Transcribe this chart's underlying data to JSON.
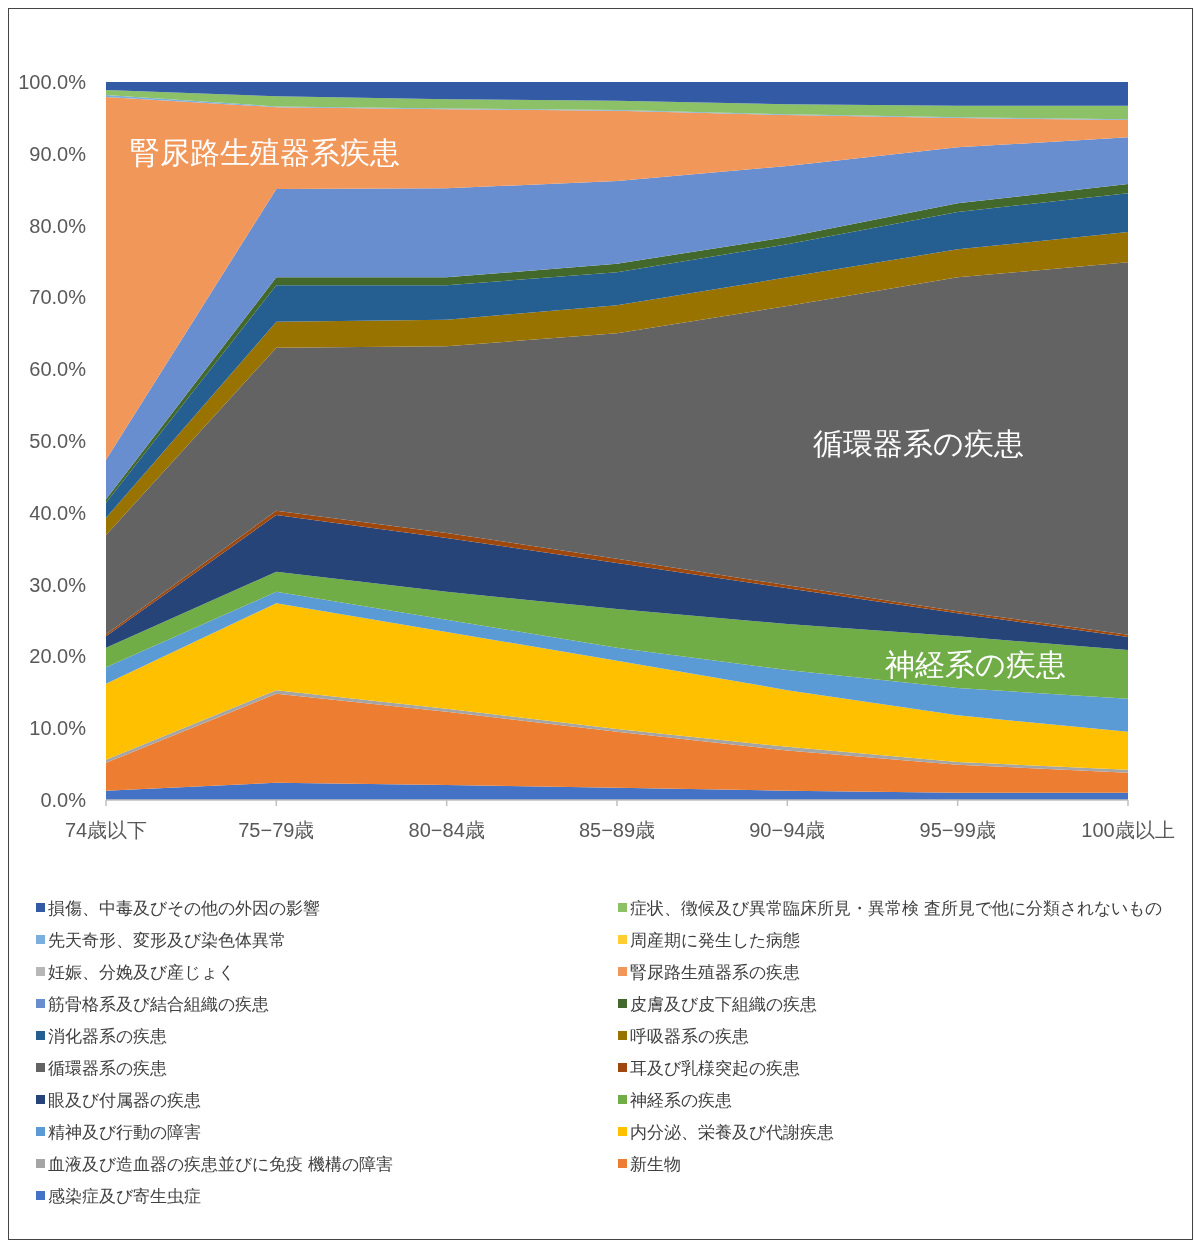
{
  "chart_data": {
    "type": "area",
    "stacked": true,
    "legend": "bottom",
    "grid": false,
    "categories": [
      "74歳以下",
      "75−79歳",
      "80−84歳",
      "85−89歳",
      "90−94歳",
      "95−99歳",
      "100歳以上"
    ],
    "ylim": [
      0,
      100
    ],
    "yticks": [
      {
        "value": 0,
        "label": "0.0%"
      },
      {
        "value": 10,
        "label": "10.0%"
      },
      {
        "value": 20,
        "label": "20.0%"
      },
      {
        "value": 30,
        "label": "30.0%"
      },
      {
        "value": 40,
        "label": "40.0%"
      },
      {
        "value": 50,
        "label": "50.0%"
      },
      {
        "value": 60,
        "label": "60.0%"
      },
      {
        "value": 70,
        "label": "70.0%"
      },
      {
        "value": 80,
        "label": "80.0%"
      },
      {
        "value": 90,
        "label": "90.0%"
      },
      {
        "value": 100,
        "label": "100.0%"
      }
    ],
    "series": [
      {
        "name": "感染症及び寄生虫症",
        "color": "#4472c4",
        "values": [
          1.3,
          2.4,
          2.1,
          1.7,
          1.3,
          1.0,
          1.0
        ]
      },
      {
        "name": "新生物",
        "color": "#ed7d31",
        "values": [
          3.9,
          12.4,
          10.2,
          7.8,
          5.6,
          3.9,
          2.8
        ]
      },
      {
        "name": "血液及び造血器の疾患並びに免疫 機構の障害",
        "color": "#a5a5a5",
        "values": [
          0.4,
          0.5,
          0.4,
          0.4,
          0.5,
          0.4,
          0.4
        ]
      },
      {
        "name": "内分泌、栄養及び代謝疾患",
        "color": "#ffc000",
        "values": [
          10.6,
          12.1,
          10.7,
          9.5,
          7.9,
          6.5,
          5.3
        ]
      },
      {
        "name": "精神及び行動の障害",
        "color": "#5b9bd5",
        "values": [
          2.3,
          1.6,
          1.7,
          1.8,
          2.8,
          3.8,
          4.6
        ]
      },
      {
        "name": "神経系の疾患",
        "color": "#70ad47",
        "values": [
          2.7,
          2.8,
          3.9,
          5.4,
          6.4,
          7.2,
          6.8
        ]
      },
      {
        "name": "眼及び付属器の疾患",
        "color": "#264478",
        "values": [
          1.6,
          7.9,
          7.5,
          6.4,
          5.0,
          3.2,
          1.8
        ]
      },
      {
        "name": "耳及び乳様突起の疾患",
        "color": "#9e480e",
        "values": [
          0.3,
          0.6,
          0.7,
          0.6,
          0.4,
          0.3,
          0.3
        ]
      },
      {
        "name": "循環器系の疾患",
        "color": "#636363",
        "values": [
          13.8,
          22.7,
          26.0,
          31.4,
          38.9,
          46.5,
          51.9
        ]
      },
      {
        "name": "呼吸器系の疾患",
        "color": "#997300",
        "values": [
          2.4,
          3.6,
          3.7,
          3.9,
          4.0,
          3.9,
          4.2
        ]
      },
      {
        "name": "消化器系の疾患",
        "color": "#255e91",
        "values": [
          2.1,
          5.1,
          4.8,
          4.6,
          4.6,
          5.2,
          5.4
        ]
      },
      {
        "name": "皮膚及び皮下組織の疾患",
        "color": "#43682b",
        "values": [
          0.5,
          1.1,
          1.1,
          1.2,
          1.0,
          1.2,
          1.3
        ]
      },
      {
        "name": "筋骨格系及び結合組織の疾患",
        "color": "#698ed0",
        "values": [
          5.5,
          12.3,
          12.4,
          11.5,
          9.9,
          7.8,
          6.5
        ]
      },
      {
        "name": "腎尿路生殖器系の疾患",
        "color": "#f1975a",
        "values": [
          50.5,
          11.4,
          11.0,
          9.8,
          7.1,
          4.1,
          2.4
        ]
      },
      {
        "name": "妊娠、分娩及び産じょく",
        "color": "#b7b7b7",
        "values": [
          null,
          null,
          null,
          null,
          null,
          null,
          null
        ]
      },
      {
        "name": "周産期に発生した病態",
        "color": "#ffcd33",
        "values": [
          null,
          null,
          null,
          null,
          null,
          null,
          null
        ]
      },
      {
        "name": "先天奇形、変形及び染色体異常",
        "color": "#7cafdd",
        "values": [
          0.3,
          0.1,
          0.1,
          0.1,
          0.1,
          0.1,
          0.1
        ]
      },
      {
        "name": "症状、徴候及び異常臨床所見・異常検 査所見で他に分類されないもの",
        "color": "#8cc168",
        "values": [
          0.7,
          1.4,
          1.3,
          1.3,
          1.4,
          1.6,
          1.9
        ]
      },
      {
        "name": "損傷、中毒及びその他の外因の影響",
        "color": "#335aa5",
        "values": [
          1.1,
          2.0,
          2.4,
          2.6,
          3.1,
          3.3,
          3.3
        ]
      }
    ],
    "annotations": [
      "腎尿路生殖器系疾患",
      "循環器系の疾患",
      "神経系の疾患"
    ]
  }
}
